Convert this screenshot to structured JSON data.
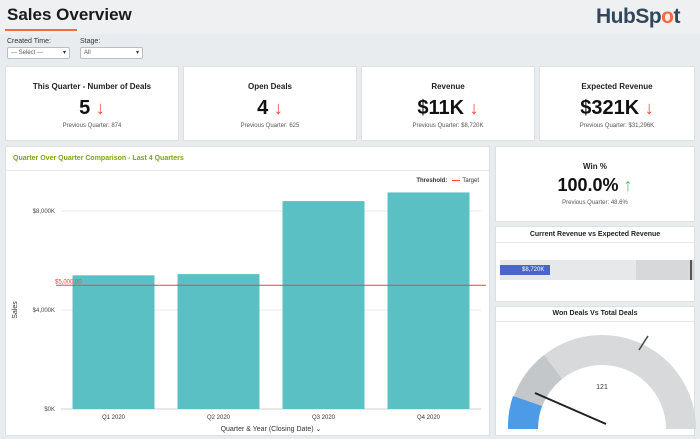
{
  "header": {
    "title": "Sales Overview",
    "logo_text_pre": "HubSp",
    "logo_text_o": "o",
    "logo_text_post": "t"
  },
  "filters": {
    "created_time_label": "Created Time:",
    "created_time_value": "--- Select ---",
    "stage_label": "Stage:",
    "stage_value": "All"
  },
  "kpis": [
    {
      "title": "This Quarter - Number of Deals",
      "value": "5",
      "trend": "↓",
      "previous": "Previous Quarter: 874"
    },
    {
      "title": "Open Deals",
      "value": "4",
      "trend": "↓",
      "previous": "Previous Quarter: 625"
    },
    {
      "title": "Revenue",
      "value": "$11K",
      "trend": "↓",
      "previous": "Previous Quarter: $8,720K"
    },
    {
      "title": "Expected Revenue",
      "value": "$321K",
      "trend": "↓",
      "previous": "Previous Quarter: $31,296K"
    }
  ],
  "win": {
    "title": "Win %",
    "value": "100.0%",
    "trend": "↑",
    "previous": "Previous Quarter: 48.6%"
  },
  "revenue_bullet": {
    "title": "Current Revenue vs Expected Revenue",
    "label": "$8,720K",
    "fraction": 0.26
  },
  "gauge": {
    "title": "Won Deals Vs Total Deals",
    "value_label": "121"
  },
  "colors": {
    "accent": "#f26b3a",
    "bar": "#5bc0c4",
    "target_line": "#e8483d",
    "down": "#e8483d",
    "up": "#5cc05a",
    "chart_title": "#7aa316",
    "bullet": "#4a66c9"
  },
  "chart_data": {
    "type": "bar",
    "title": "Quarter Over Quarter Comparison - Last 4 Quarters",
    "xlabel": "Quarter & Year (Closing Date)",
    "ylabel": "Sales",
    "categories": [
      "Q1 2020",
      "Q2 2020",
      "Q3 2020",
      "Q4 2020"
    ],
    "values": [
      5400,
      5450,
      8400,
      8750
    ],
    "ylim": [
      0,
      8000
    ],
    "yticks": [
      0,
      4000,
      8000
    ],
    "ytick_labels": [
      "$0K",
      "$4,000K",
      "$8,000K"
    ],
    "grid": true,
    "threshold": {
      "value": 5000,
      "label": "$5,000.00",
      "legend_title": "Threshold:",
      "legend_label": "Target"
    }
  }
}
